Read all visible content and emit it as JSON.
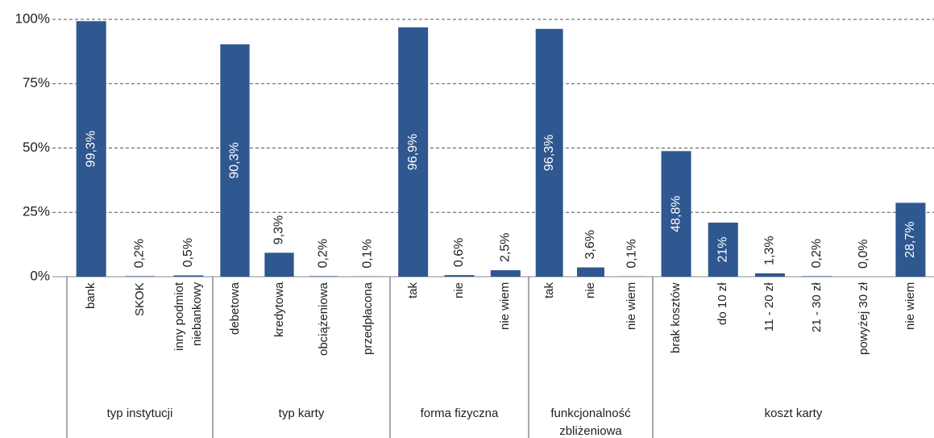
{
  "chart_data": {
    "type": "bar",
    "color": "#2f5790",
    "grid": true,
    "ylim": [
      0,
      100
    ],
    "yticks": [
      {
        "value": 0,
        "label": "0%"
      },
      {
        "value": 25,
        "label": "25%"
      },
      {
        "value": 50,
        "label": "50%"
      },
      {
        "value": 75,
        "label": "75%"
      },
      {
        "value": 100,
        "label": "100%"
      }
    ],
    "groups": [
      {
        "name": "typ instytucji",
        "categories": [
          "bank",
          "SKOK",
          "inny podmiot niebankowy"
        ],
        "values": [
          99.3,
          0.2,
          0.5
        ],
        "value_labels": [
          "99,3%",
          "0,2%",
          "0,5%"
        ]
      },
      {
        "name": "typ karty",
        "categories": [
          "debetowa",
          "kredytowa",
          "obciążeniowa",
          "przedpłacona"
        ],
        "values": [
          90.3,
          9.3,
          0.2,
          0.1
        ],
        "value_labels": [
          "90,3%",
          "9,3%",
          "0,2%",
          "0,1%"
        ]
      },
      {
        "name": "forma fizyczna",
        "categories": [
          "tak",
          "nie",
          "nie wiem"
        ],
        "values": [
          96.9,
          0.6,
          2.5
        ],
        "value_labels": [
          "96,9%",
          "0,6%",
          "2,5%"
        ]
      },
      {
        "name": "funkcjonalność zbliżeniowa",
        "categories": [
          "tak",
          "nie",
          "nie wiem"
        ],
        "values": [
          96.3,
          3.6,
          0.1
        ],
        "value_labels": [
          "96,3%",
          "3,6%",
          "0,1%"
        ]
      },
      {
        "name": "koszt karty",
        "categories": [
          "brak kosztów",
          "do 10 zł",
          "11 - 20 zł",
          "21 - 30 zł",
          "powyżej 30 zł",
          "nie wiem"
        ],
        "values": [
          48.8,
          21,
          1.3,
          0.2,
          0,
          28.7
        ],
        "value_labels": [
          "48,8%",
          "21%",
          "1,3%",
          "0,2%",
          "0,0%",
          "28,7%"
        ]
      }
    ]
  }
}
